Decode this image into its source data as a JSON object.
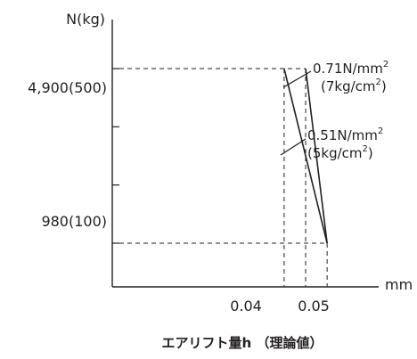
{
  "chart_data": {
    "type": "line",
    "ylabel": "N(kg)",
    "xlabel": "エアリフト量h （理論値）",
    "x_unit": "mm",
    "x_ticks": [
      "0.04",
      "0.05"
    ],
    "y_tick_labels": [
      {
        "value": 4900,
        "label": "4,900(500)"
      },
      {
        "value": 980,
        "label": "980(100)"
      }
    ],
    "y_minor_ticks": [
      3593,
      2287
    ],
    "xlim": [
      0.0,
      0.062
    ],
    "ylim": [
      0,
      6000
    ],
    "grid": false,
    "series": [
      {
        "name": "0.71N/mm² (7kg/cm²)",
        "x": [
          0.045,
          0.05
        ],
        "y": [
          4900,
          980
        ]
      },
      {
        "name": "0.51N/mm² (5kg/cm²)",
        "x": [
          0.04,
          0.05
        ],
        "y": [
          4900,
          980
        ]
      }
    ],
    "annotations": {
      "upper": {
        "main": "0.71N/mm",
        "sup": "2",
        "sub_pre": "(7kg/cm",
        "sub_sup": "2",
        "sub_post": ")"
      },
      "lower": {
        "main": "0.51N/mm",
        "sup": "2",
        "sub_pre": "(5kg/cm",
        "sub_sup": "2",
        "sub_post": ")"
      }
    }
  }
}
